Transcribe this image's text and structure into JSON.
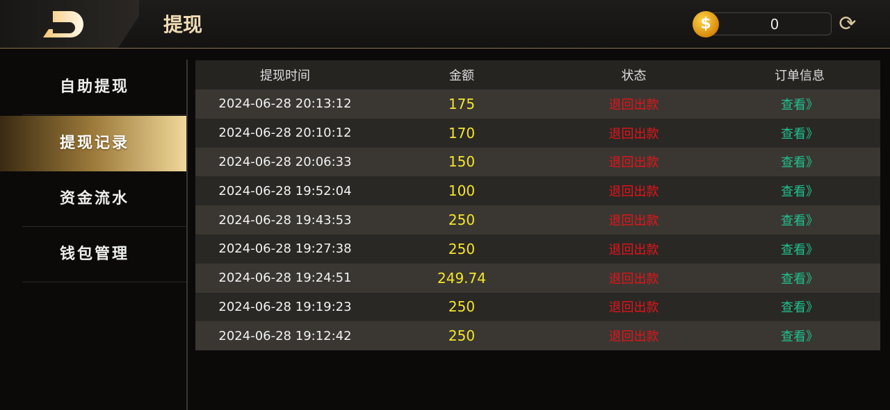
{
  "header": {
    "title": "提现",
    "balance": "0",
    "coin_icon": "coin-dollar-icon",
    "refresh_icon": "refresh-icon"
  },
  "sidebar": {
    "items": [
      {
        "label": "自助提现"
      },
      {
        "label": "提现记录",
        "active": true
      },
      {
        "label": "资金流水"
      },
      {
        "label": "钱包管理"
      }
    ]
  },
  "table": {
    "columns": [
      "提现时间",
      "金额",
      "状态",
      "订单信息"
    ],
    "rows": [
      {
        "time": "2024-06-28 20:13:12",
        "amount": "175",
        "status": "退回出款",
        "action": "查看》"
      },
      {
        "time": "2024-06-28 20:10:12",
        "amount": "170",
        "status": "退回出款",
        "action": "查看》"
      },
      {
        "time": "2024-06-28 20:06:33",
        "amount": "150",
        "status": "退回出款",
        "action": "查看》"
      },
      {
        "time": "2024-06-28 19:52:04",
        "amount": "100",
        "status": "退回出款",
        "action": "查看》"
      },
      {
        "time": "2024-06-28 19:43:53",
        "amount": "250",
        "status": "退回出款",
        "action": "查看》"
      },
      {
        "time": "2024-06-28 19:27:38",
        "amount": "250",
        "status": "退回出款",
        "action": "查看》"
      },
      {
        "time": "2024-06-28 19:24:51",
        "amount": "249.74",
        "status": "退回出款",
        "action": "查看》"
      },
      {
        "time": "2024-06-28 19:19:23",
        "amount": "250",
        "status": "退回出款",
        "action": "查看》"
      },
      {
        "time": "2024-06-28 19:12:42",
        "amount": "250",
        "status": "退回出款",
        "action": "查看》"
      }
    ]
  },
  "colors": {
    "amount": "#f5e62a",
    "status": "#e5141a",
    "link": "#1fc28f",
    "accent": "#f0d89a"
  }
}
